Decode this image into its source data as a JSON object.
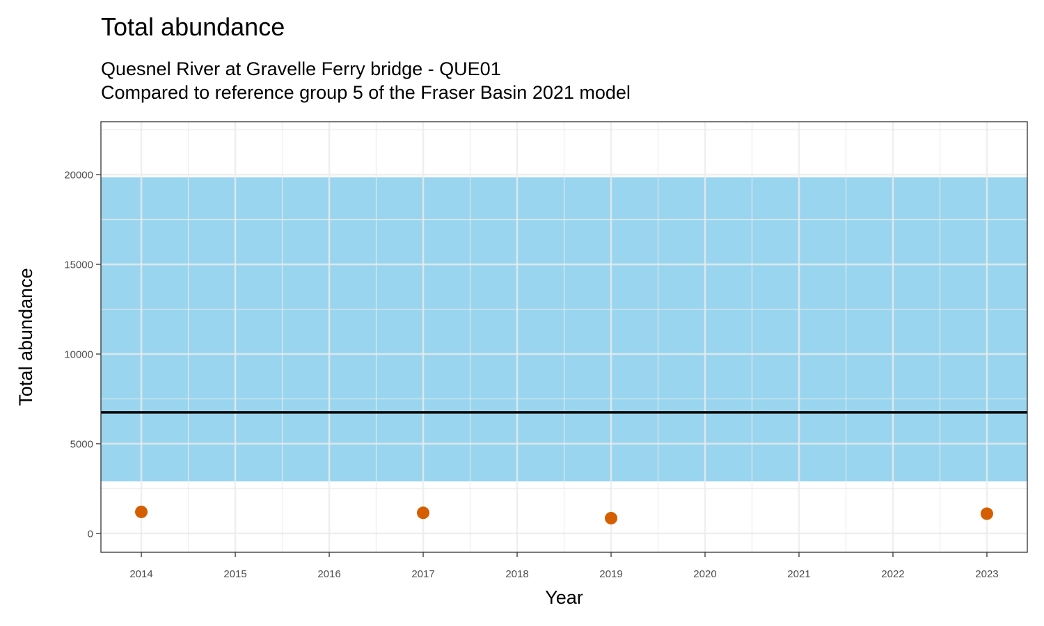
{
  "chart_data": {
    "type": "scatter",
    "title": "Total abundance",
    "subtitle_lines": [
      "Quesnel River at Gravelle Ferry bridge - QUE01",
      "Compared to reference group 5 of the Fraser Basin 2021 model"
    ],
    "xlabel": "Year",
    "ylabel": "Total abundance",
    "x_ticks": [
      2014,
      2015,
      2016,
      2017,
      2018,
      2019,
      2020,
      2021,
      2022,
      2023
    ],
    "y_ticks": [
      0,
      5000,
      10000,
      15000,
      20000
    ],
    "xlim": [
      2013.57,
      2023.43
    ],
    "ylim": [
      -1050,
      22950
    ],
    "reference_band": {
      "lower": 2900,
      "upper": 19850,
      "color": "#87CEEB"
    },
    "reference_line": {
      "value": 6750,
      "color": "#000000"
    },
    "series": [
      {
        "color": "#D55E00",
        "points": [
          {
            "x": 2014,
            "y": 1200
          },
          {
            "x": 2017,
            "y": 1150
          },
          {
            "x": 2019,
            "y": 850
          },
          {
            "x": 2023,
            "y": 1100
          }
        ]
      }
    ],
    "grid": true
  }
}
